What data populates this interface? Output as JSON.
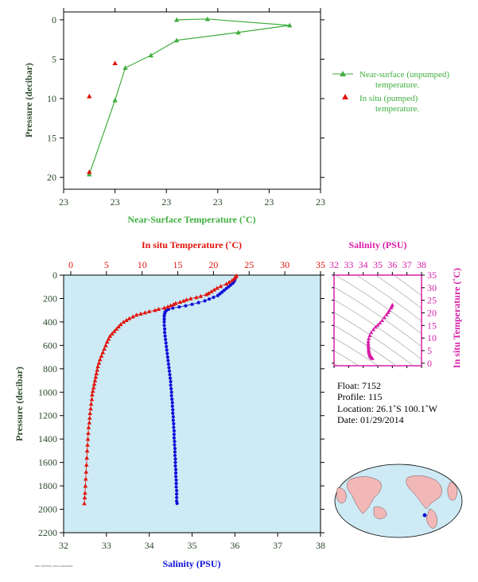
{
  "colors": {
    "green": "#3fae3f",
    "red": "#e0140c",
    "blue": "#1010d8",
    "magenta": "#d81ea8",
    "panel_bg": "#cdeaf5",
    "axis_text": "#2c4a2c"
  },
  "chart_data": [
    {
      "type": "line",
      "panel": "near-surface",
      "xlabel": "Near-Surface Temperature (˚C)",
      "ylabel": "Pressure (decibar)",
      "x_tick_labels": [
        "23",
        "23",
        "23",
        "23",
        "23",
        "23"
      ],
      "y_ticks": [
        0,
        5,
        10,
        15,
        20
      ],
      "xlim_index": [
        0,
        5
      ],
      "ylim": [
        21.5,
        -1
      ],
      "series": [
        {
          "name": "Near-surface (unpumped) temperature.",
          "marker": "triangle",
          "line": true,
          "x_index": [
            2.2,
            2.8,
            4.4,
            3.4,
            2.2,
            1.7,
            1.2,
            1.0,
            0.5
          ],
          "y": [
            0.0,
            -0.1,
            0.7,
            1.6,
            2.6,
            4.5,
            6.1,
            10.2,
            19.6
          ]
        },
        {
          "name": "In situ (pumped) temperature.",
          "marker": "triangle",
          "line": false,
          "x_index": [
            1.0,
            0.5,
            0.5
          ],
          "y": [
            5.5,
            9.7,
            19.3
          ]
        }
      ]
    },
    {
      "type": "scatter",
      "panel": "profile",
      "ylabel": "Pressure (decibar)",
      "y_ticks": [
        0,
        200,
        400,
        600,
        800,
        1000,
        1200,
        1400,
        1600,
        1800,
        2000,
        2200
      ],
      "ylim": [
        2200,
        0
      ],
      "top_axis": {
        "label": "In situ Temperature (˚C)",
        "ticks": [
          0,
          5,
          10,
          15,
          20,
          25,
          30,
          35
        ],
        "range": [
          -1,
          35
        ]
      },
      "bottom_axis": {
        "label": "Salinity (PSU)",
        "ticks": [
          32,
          33,
          34,
          35,
          36,
          37,
          38
        ],
        "range": [
          32,
          38
        ]
      },
      "series": [
        {
          "name": "In situ Temperature (˚C)",
          "marker": "triangle",
          "points": [
            [
              23.2,
              5
            ],
            [
              23.1,
              15
            ],
            [
              22.9,
              30
            ],
            [
              22.6,
              45
            ],
            [
              22.2,
              60
            ],
            [
              21.8,
              75
            ],
            [
              21.0,
              95
            ],
            [
              20.5,
              110
            ],
            [
              20.1,
              125
            ],
            [
              19.7,
              140
            ],
            [
              19.3,
              155
            ],
            [
              19.0,
              165
            ],
            [
              18.2,
              180
            ],
            [
              17.6,
              190
            ],
            [
              16.8,
              200
            ],
            [
              16.2,
              210
            ],
            [
              15.8,
              220
            ],
            [
              15.3,
              230
            ],
            [
              14.7,
              240
            ],
            [
              14.4,
              250
            ],
            [
              14.0,
              260
            ],
            [
              13.6,
              270
            ],
            [
              13.1,
              280
            ],
            [
              12.3,
              290
            ],
            [
              11.8,
              300
            ],
            [
              11.0,
              310
            ],
            [
              10.4,
              320
            ],
            [
              9.8,
              330
            ],
            [
              9.2,
              340
            ],
            [
              8.7,
              355
            ],
            [
              8.2,
              370
            ],
            [
              7.8,
              385
            ],
            [
              7.4,
              400
            ],
            [
              7.0,
              420
            ],
            [
              6.7,
              440
            ],
            [
              6.4,
              460
            ],
            [
              6.1,
              480
            ],
            [
              5.8,
              500
            ],
            [
              5.5,
              520
            ],
            [
              5.3,
              545
            ],
            [
              5.1,
              570
            ],
            [
              4.9,
              600
            ],
            [
              4.7,
              630
            ],
            [
              4.5,
              660
            ],
            [
              4.3,
              690
            ],
            [
              4.1,
              720
            ],
            [
              3.95,
              750
            ],
            [
              3.8,
              780
            ],
            [
              3.7,
              810
            ],
            [
              3.6,
              840
            ],
            [
              3.5,
              870
            ],
            [
              3.4,
              900
            ],
            [
              3.3,
              930
            ],
            [
              3.2,
              960
            ],
            [
              3.1,
              990
            ],
            [
              3.0,
              1020
            ],
            [
              2.95,
              1060
            ],
            [
              2.85,
              1100
            ],
            [
              2.8,
              1140
            ],
            [
              2.7,
              1180
            ],
            [
              2.65,
              1220
            ],
            [
              2.6,
              1260
            ],
            [
              2.5,
              1300
            ],
            [
              2.45,
              1350
            ],
            [
              2.4,
              1400
            ],
            [
              2.35,
              1450
            ],
            [
              2.3,
              1500
            ],
            [
              2.25,
              1560
            ],
            [
              2.2,
              1620
            ],
            [
              2.15,
              1680
            ],
            [
              2.1,
              1740
            ],
            [
              2.05,
              1800
            ],
            [
              2.0,
              1860
            ],
            [
              1.95,
              1900
            ],
            [
              1.9,
              1950
            ]
          ]
        },
        {
          "name": "Salinity (PSU)",
          "marker": "dot",
          "points": [
            [
              36.0,
              40
            ],
            [
              35.98,
              55
            ],
            [
              35.95,
              70
            ],
            [
              35.9,
              85
            ],
            [
              35.85,
              100
            ],
            [
              35.8,
              115
            ],
            [
              35.75,
              130
            ],
            [
              35.7,
              145
            ],
            [
              35.65,
              160
            ],
            [
              35.6,
              175
            ],
            [
              35.5,
              190
            ],
            [
              35.4,
              205
            ],
            [
              35.3,
              220
            ],
            [
              35.15,
              235
            ],
            [
              35.0,
              250
            ],
            [
              34.85,
              262
            ],
            [
              34.7,
              272
            ],
            [
              34.55,
              282
            ],
            [
              34.45,
              292
            ],
            [
              34.4,
              302
            ],
            [
              34.37,
              315
            ],
            [
              34.36,
              330
            ],
            [
              34.35,
              350
            ],
            [
              34.35,
              375
            ],
            [
              34.35,
              400
            ],
            [
              34.35,
              430
            ],
            [
              34.36,
              460
            ],
            [
              34.36,
              490
            ],
            [
              34.37,
              520
            ],
            [
              34.38,
              550
            ],
            [
              34.39,
              580
            ],
            [
              34.4,
              610
            ],
            [
              34.41,
              640
            ],
            [
              34.42,
              670
            ],
            [
              34.43,
              700
            ],
            [
              34.44,
              730
            ],
            [
              34.45,
              760
            ],
            [
              34.46,
              790
            ],
            [
              34.47,
              820
            ],
            [
              34.48,
              850
            ],
            [
              34.49,
              880
            ],
            [
              34.5,
              910
            ],
            [
              34.5,
              940
            ],
            [
              34.51,
              970
            ],
            [
              34.52,
              1000
            ],
            [
              34.52,
              1030
            ],
            [
              34.53,
              1060
            ],
            [
              34.54,
              1090
            ],
            [
              34.54,
              1120
            ],
            [
              34.55,
              1150
            ],
            [
              34.55,
              1180
            ],
            [
              34.56,
              1210
            ],
            [
              34.56,
              1240
            ],
            [
              34.57,
              1270
            ],
            [
              34.57,
              1300
            ],
            [
              34.58,
              1330
            ],
            [
              34.58,
              1360
            ],
            [
              34.58,
              1390
            ],
            [
              34.59,
              1420
            ],
            [
              34.59,
              1450
            ],
            [
              34.6,
              1480
            ],
            [
              34.6,
              1510
            ],
            [
              34.6,
              1540
            ],
            [
              34.61,
              1570
            ],
            [
              34.61,
              1600
            ],
            [
              34.61,
              1630
            ],
            [
              34.62,
              1660
            ],
            [
              34.62,
              1690
            ],
            [
              34.62,
              1720
            ],
            [
              34.63,
              1750
            ],
            [
              34.63,
              1780
            ],
            [
              34.63,
              1810
            ],
            [
              34.64,
              1840
            ],
            [
              34.64,
              1870
            ],
            [
              34.64,
              1900
            ],
            [
              34.64,
              1930
            ],
            [
              34.65,
              1950
            ]
          ]
        }
      ]
    },
    {
      "type": "scatter",
      "panel": "TS",
      "title": "Salinity (PSU)",
      "ylabel": "In situ Temperature (˚C)",
      "x_ticks": [
        32,
        33,
        34,
        35,
        36,
        37,
        38
      ],
      "y_ticks": [
        0,
        5,
        10,
        15,
        20,
        25,
        30,
        35
      ],
      "xlim": [
        32,
        38
      ],
      "ylim": [
        -1,
        35
      ],
      "points": [
        [
          36.0,
          23.2
        ],
        [
          35.95,
          22.6
        ],
        [
          35.9,
          22.0
        ],
        [
          35.8,
          21.0
        ],
        [
          35.7,
          20.2
        ],
        [
          35.6,
          19.3
        ],
        [
          35.45,
          18.2
        ],
        [
          35.3,
          17.0
        ],
        [
          35.15,
          16.0
        ],
        [
          35.0,
          15.2
        ],
        [
          34.85,
          14.4
        ],
        [
          34.7,
          13.4
        ],
        [
          34.55,
          12.2
        ],
        [
          34.45,
          11.0
        ],
        [
          34.38,
          9.8
        ],
        [
          34.35,
          8.7
        ],
        [
          34.35,
          7.8
        ],
        [
          34.35,
          7.0
        ],
        [
          34.36,
          6.2
        ],
        [
          34.37,
          5.5
        ],
        [
          34.38,
          4.9
        ],
        [
          34.4,
          4.4
        ],
        [
          34.42,
          4.0
        ],
        [
          34.44,
          3.6
        ],
        [
          34.46,
          3.3
        ],
        [
          34.48,
          3.0
        ],
        [
          34.5,
          2.8
        ],
        [
          34.52,
          2.6
        ],
        [
          34.55,
          2.4
        ],
        [
          34.58,
          2.2
        ],
        [
          34.61,
          2.05
        ],
        [
          34.64,
          1.9
        ]
      ]
    }
  ],
  "info": {
    "float": "Float:  7152",
    "profile": "Profile:  115",
    "location": "Location:  26.1˚S  100.1˚W",
    "date": "Date:  01/29/2014"
  },
  "footer_text": "PSV 7152/7152_115.txt 2014/01/29"
}
